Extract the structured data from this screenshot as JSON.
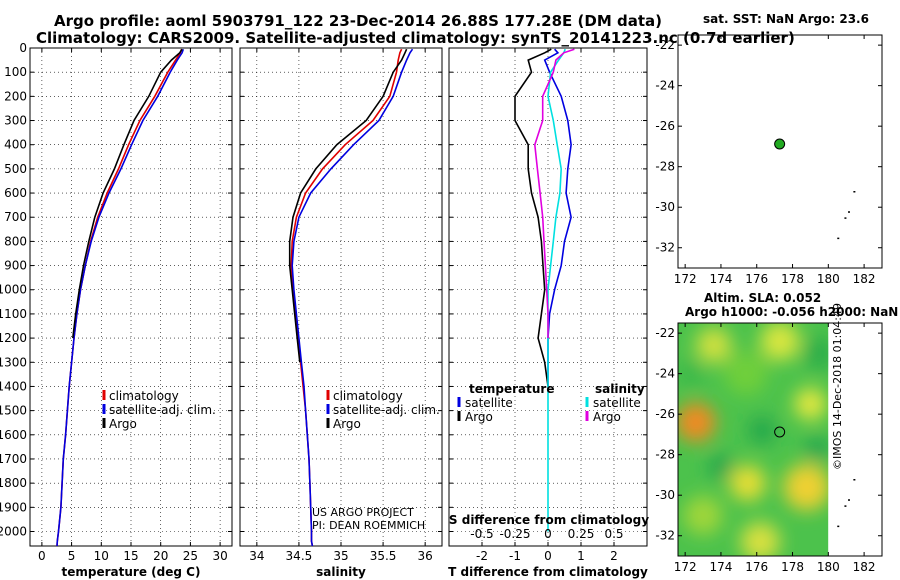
{
  "header": {
    "line1": "Argo profile: aoml 5903791_122 23-Dec-2014 26.88S 177.28E (DM data)",
    "line2": "Climatology: CARS2009. Satellite-adjusted climatology: synTS_20141223.nc (0.7d earlier)"
  },
  "colors": {
    "climatology": "#e00000",
    "satellite": "#0000e0",
    "argo": "#000000",
    "satellite_s": "#00e0e0",
    "argo_s": "#e000e0",
    "argo_marker": "#22aa22"
  },
  "sst_panel": {
    "title": "sat. SST: NaN Argo: 23.6"
  },
  "sla_panel": {
    "title1": "Altim. SLA: 0.052",
    "title2": "Argo h1000: -0.056 h2000: NaN"
  },
  "credit": {
    "line1": "US ARGO PROJECT",
    "line2": "PI: DEAN ROEMMICH"
  },
  "stamp": "©IMOS 14-Dec-2018 01:04:49",
  "chart_data": [
    {
      "type": "line",
      "id": "temperature",
      "xlabel": "temperature (deg C)",
      "xlim": [
        -2,
        32
      ],
      "xticks": [
        0,
        5,
        10,
        15,
        20,
        25,
        30
      ],
      "ylim": [
        0,
        2060
      ],
      "yticks": [
        0,
        100,
        200,
        300,
        400,
        500,
        600,
        700,
        800,
        900,
        1000,
        1100,
        1200,
        1300,
        1400,
        1500,
        1600,
        1700,
        1800,
        1900,
        2000
      ],
      "ydir": "reverse",
      "grid": true,
      "legend": {
        "position": "lower-center",
        "entries": [
          "climatology",
          "satellite-adj. clim.",
          "Argo"
        ]
      },
      "series": [
        {
          "name": "climatology",
          "color": "#e00000",
          "x": [
            23.5,
            23.3,
            22.5,
            21.2,
            19.0,
            16.5,
            14.6,
            12.9,
            11.0,
            9.4,
            8.2,
            7.3,
            6.5,
            5.9,
            5.4,
            5.0,
            4.6,
            4.3,
            4.0,
            3.6,
            3.4,
            3.2,
            3.0,
            2.8,
            2.6,
            2.55
          ],
          "y": [
            5,
            20,
            50,
            100,
            200,
            300,
            400,
            500,
            600,
            700,
            800,
            900,
            1000,
            1100,
            1200,
            1300,
            1400,
            1500,
            1600,
            1700,
            1800,
            1900,
            1950,
            2000,
            2040,
            2060
          ]
        },
        {
          "name": "satellite-adj. clim.",
          "color": "#0000e0",
          "x": [
            23.8,
            23.6,
            22.8,
            21.6,
            19.5,
            17.0,
            15.1,
            13.3,
            11.3,
            9.6,
            8.3,
            7.3,
            6.5,
            5.9,
            5.4,
            5.0,
            4.6,
            4.3,
            4.0,
            3.6,
            3.4,
            3.2,
            3.0,
            2.8,
            2.6,
            2.55
          ],
          "y": [
            5,
            20,
            50,
            100,
            200,
            300,
            400,
            500,
            600,
            700,
            800,
            900,
            1000,
            1100,
            1200,
            1300,
            1400,
            1500,
            1600,
            1700,
            1800,
            1900,
            1950,
            2000,
            2040,
            2060
          ]
        },
        {
          "name": "Argo",
          "color": "#000000",
          "x": [
            23.6,
            23.2,
            21.8,
            20.0,
            18.0,
            15.5,
            13.8,
            12.2,
            10.3,
            8.9,
            7.9,
            7.0,
            6.3,
            5.7,
            5.2
          ],
          "y": [
            5,
            20,
            50,
            100,
            200,
            300,
            400,
            500,
            600,
            700,
            800,
            900,
            1000,
            1100,
            1200
          ]
        }
      ]
    },
    {
      "type": "line",
      "id": "salinity",
      "xlabel": "salinity",
      "xlim": [
        33.8,
        36.2
      ],
      "xticks": [
        34,
        34.5,
        35,
        35.5,
        36
      ],
      "ylim": [
        0,
        2060
      ],
      "ydir": "reverse",
      "grid": true,
      "legend": {
        "position": "lower-center",
        "entries": [
          "climatology",
          "satellite-adj. clim.",
          "Argo"
        ]
      },
      "series": [
        {
          "name": "climatology",
          "color": "#e00000",
          "x": [
            35.72,
            35.7,
            35.68,
            35.66,
            35.58,
            35.38,
            35.05,
            34.78,
            34.58,
            34.47,
            34.42,
            34.41,
            34.43,
            34.46,
            34.49,
            34.52,
            34.55,
            34.58,
            34.6,
            34.62,
            34.63,
            34.64,
            34.65,
            34.65,
            34.66
          ],
          "y": [
            5,
            20,
            50,
            100,
            200,
            300,
            400,
            500,
            600,
            700,
            800,
            900,
            1000,
            1100,
            1200,
            1300,
            1400,
            1500,
            1600,
            1700,
            1800,
            1900,
            2000,
            2040,
            2060
          ]
        },
        {
          "name": "satellite-adj. clim.",
          "color": "#0000e0",
          "x": [
            35.85,
            35.82,
            35.78,
            35.72,
            35.62,
            35.45,
            35.15,
            34.88,
            34.64,
            34.5,
            34.44,
            34.42,
            34.44,
            34.47,
            34.5,
            34.53,
            34.56,
            34.58,
            34.6,
            34.62,
            34.63,
            34.64,
            34.65,
            34.65,
            34.66
          ],
          "y": [
            5,
            20,
            50,
            100,
            200,
            300,
            400,
            500,
            600,
            700,
            800,
            900,
            1000,
            1100,
            1200,
            1300,
            1400,
            1500,
            1600,
            1700,
            1800,
            1900,
            2000,
            2040,
            2060
          ]
        },
        {
          "name": "Argo",
          "color": "#000000",
          "x": [
            35.78,
            35.76,
            35.72,
            35.62,
            35.5,
            35.3,
            34.95,
            34.7,
            34.52,
            34.43,
            34.39,
            34.39,
            34.42,
            34.45,
            34.48,
            34.51
          ],
          "y": [
            5,
            20,
            50,
            100,
            200,
            300,
            400,
            500,
            600,
            700,
            800,
            900,
            1000,
            1100,
            1200,
            1300
          ]
        }
      ]
    },
    {
      "type": "line",
      "id": "differences",
      "xlabel": "T difference from climatology",
      "xlabel_top": "S difference from climatology",
      "xlim": [
        -3,
        3
      ],
      "xticks": [
        -2,
        -1,
        0,
        1,
        2
      ],
      "xticks_s": [
        -0.5,
        -0.25,
        0,
        0.25,
        0.5
      ],
      "xticks_s_labels": [
        "-0.5",
        "-0.25",
        "0",
        "0.25",
        "0.5"
      ],
      "ylim": [
        0,
        2060
      ],
      "ydir": "reverse",
      "grid": true,
      "legend_left": {
        "title": "temperature",
        "entries": [
          "satellite",
          "Argo"
        ]
      },
      "legend_right": {
        "title": "salinity",
        "entries": [
          "satellite",
          "Argo"
        ]
      },
      "series": [
        {
          "name": "satellite",
          "variable": "temperature",
          "color": "#0000e0",
          "x": [
            0.2,
            0.3,
            -0.1,
            0.05,
            0.4,
            0.6,
            0.7,
            0.6,
            0.55,
            0.7,
            0.5,
            0.4,
            0.2,
            0.05,
            0.0,
            0.0
          ],
          "y": [
            5,
            20,
            50,
            100,
            200,
            300,
            400,
            500,
            600,
            700,
            800,
            900,
            1000,
            1100,
            1200,
            1400
          ]
        },
        {
          "name": "Argo",
          "variable": "temperature",
          "color": "#000000",
          "x": [
            0.1,
            -0.1,
            -0.6,
            -0.5,
            -1.0,
            -1.0,
            -0.6,
            -0.6,
            -0.5,
            -0.3,
            -0.2,
            -0.15,
            -0.1,
            -0.2,
            -0.3,
            -0.1,
            0.0
          ],
          "y": [
            5,
            20,
            50,
            100,
            200,
            300,
            400,
            500,
            600,
            700,
            800,
            900,
            1000,
            1100,
            1200,
            1300,
            1400
          ]
        },
        {
          "name": "satellite",
          "variable": "salinity",
          "color": "#00e0e0",
          "x": [
            0.13,
            0.12,
            0.08,
            0.02,
            0.0,
            0.04,
            0.07,
            0.1,
            0.09,
            0.06,
            0.04,
            0.02,
            0.0,
            0.0,
            0.0,
            0.0,
            0.0
          ],
          "y": [
            5,
            20,
            50,
            100,
            200,
            300,
            400,
            500,
            600,
            700,
            800,
            900,
            1000,
            1200,
            1400,
            1700,
            2000
          ]
        },
        {
          "name": "Argo",
          "variable": "salinity",
          "color": "#e000e0",
          "x": [
            0.2,
            0.12,
            0.06,
            0.04,
            -0.04,
            -0.04,
            -0.1,
            -0.08,
            -0.06,
            -0.04,
            -0.03,
            -0.02,
            -0.01,
            0.0,
            0.0
          ],
          "y": [
            5,
            20,
            50,
            100,
            200,
            300,
            400,
            500,
            600,
            700,
            800,
            900,
            1000,
            1100,
            1200
          ]
        }
      ]
    },
    {
      "type": "scatter",
      "id": "sst_map",
      "xlim": [
        171.6,
        183.0
      ],
      "ylim": [
        -33,
        -21.5
      ],
      "xticks": [
        172,
        174,
        176,
        178,
        180,
        182
      ],
      "yticks": [
        -22,
        -24,
        -26,
        -28,
        -30,
        -32
      ],
      "argo_position": [
        177.28,
        -26.88
      ]
    },
    {
      "type": "heatmap",
      "id": "sla_map",
      "xlim": [
        171.6,
        183.0
      ],
      "ylim": [
        -33,
        -21.5
      ],
      "xticks": [
        172,
        174,
        176,
        178,
        180,
        182
      ],
      "yticks": [
        -22,
        -24,
        -26,
        -28,
        -30,
        -32
      ],
      "argo_position": [
        177.28,
        -26.88
      ],
      "data_extent": {
        "lon": [
          171.6,
          180
        ],
        "lat": [
          -33,
          -21.5
        ]
      }
    }
  ]
}
